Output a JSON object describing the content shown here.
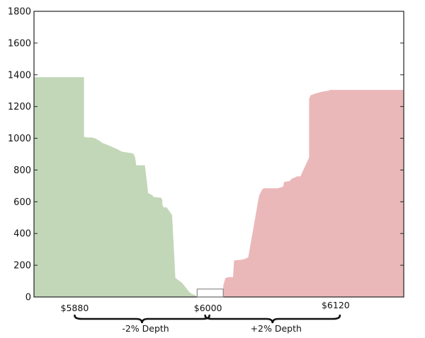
{
  "colors": {
    "bids_fill": "#c2d7b8",
    "asks_fill": "#ebb8ba",
    "axis": "#222222",
    "brace": "#111111"
  },
  "chart_data": {
    "type": "area",
    "title": "",
    "xlabel": "",
    "ylabel": "",
    "xlim": [
      5840,
      6180
    ],
    "ylim": [
      0,
      1800
    ],
    "grid": false,
    "yticks": [
      "0",
      "200",
      "400",
      "600",
      "800",
      "1000",
      "1200",
      "1400",
      "1600",
      "1800"
    ],
    "series": [
      {
        "side": "bids",
        "x": [
          5840,
          5886,
          5886,
          5888,
          5890,
          5893,
          5896,
          5900,
          5903,
          5907,
          5912,
          5917,
          5921,
          5924,
          5931,
          5932,
          5933,
          5934,
          5937,
          5942,
          5945,
          5949,
          5950,
          5957,
          5958,
          5958,
          5959,
          5962,
          5965,
          5967,
          5970,
          5976,
          5983,
          5984,
          5985,
          5987,
          5988,
          5989,
          5990,
          5990
        ],
        "values": [
          1385,
          1385,
          1010,
          1005,
          1005,
          1005,
          1000,
          985,
          970,
          960,
          945,
          930,
          915,
          912,
          905,
          895,
          880,
          830,
          830,
          830,
          655,
          640,
          630,
          625,
          610,
          585,
          565,
          565,
          535,
          515,
          120,
          90,
          30,
          25,
          20,
          15,
          12,
          6,
          3,
          0
        ]
      },
      {
        "side": "asks",
        "x": [
          6014,
          6014,
          6016,
          6019,
          6023,
          6024,
          6031,
          6034,
          6037,
          6047,
          6049,
          6050,
          6052,
          6055,
          6064,
          6069,
          6070,
          6075,
          6077,
          6079,
          6082,
          6085,
          6093,
          6093,
          6094,
          6094,
          6100,
          6106,
          6111,
          6112,
          6140
        ],
        "values": [
          0,
          70,
          120,
          125,
          125,
          230,
          235,
          240,
          250,
          640,
          665,
          680,
          685,
          685,
          685,
          695,
          725,
          730,
          745,
          750,
          760,
          760,
          880,
          1250,
          1265,
          1270,
          1285,
          1295,
          1300,
          1305,
          1305
        ]
      }
    ],
    "annotations": {
      "box": {
        "x": [
          5990,
          6014
        ],
        "y": [
          0,
          50
        ]
      },
      "price_labels": [
        {
          "value": 5880,
          "text": "$5880"
        },
        {
          "value": 6000,
          "text": "$6000"
        },
        {
          "value": 6120,
          "text": "$6120"
        }
      ],
      "depth_braces": [
        {
          "from": 5880,
          "to": 6000,
          "text": "-2% Depth"
        },
        {
          "from": 6000,
          "to": 6120,
          "text": "+2% Depth"
        }
      ]
    }
  }
}
